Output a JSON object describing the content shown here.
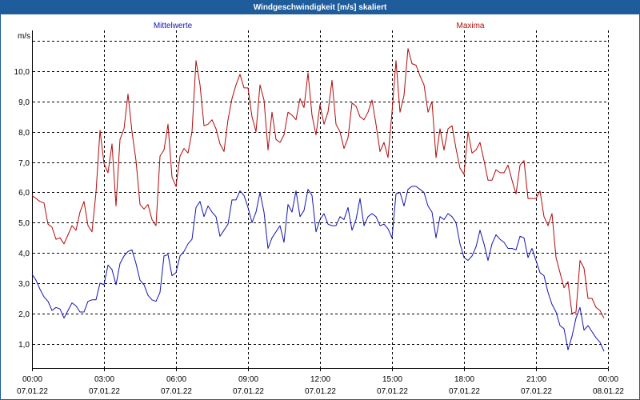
{
  "colors": {
    "title_bar": "#1e5c9b",
    "title_text": "#ffffff",
    "grid": "#000000",
    "axis": "#000000"
  },
  "chart_data": {
    "type": "line",
    "title": "Windgeschwindigkeit [m/s] skaliert",
    "xlabel": "",
    "ylabel": "m/s",
    "ylim": [
      0.2,
      11.35
    ],
    "xlim": [
      "07.01.22 00:00",
      "08.01.22 00:00"
    ],
    "grid": true,
    "legend": "top",
    "y_ticks": [
      {
        "value": 1,
        "label": "1,0"
      },
      {
        "value": 2,
        "label": "2,0"
      },
      {
        "value": 3,
        "label": "3,0"
      },
      {
        "value": 4,
        "label": "4,0"
      },
      {
        "value": 5,
        "label": "5,0"
      },
      {
        "value": 6,
        "label": "6,0"
      },
      {
        "value": 7,
        "label": "7,0"
      },
      {
        "value": 8,
        "label": "8,0"
      },
      {
        "value": 9,
        "label": "9,0"
      },
      {
        "value": 10,
        "label": "10,0"
      }
    ],
    "x_ticks": [
      {
        "time": "00:00",
        "date": "07.01.22"
      },
      {
        "time": "03:00",
        "date": "07.01.22"
      },
      {
        "time": "06:00",
        "date": "07.01.22"
      },
      {
        "time": "09:00",
        "date": "07.01.22"
      },
      {
        "time": "12:00",
        "date": "07.01.22"
      },
      {
        "time": "15:00",
        "date": "07.01.22"
      },
      {
        "time": "18:00",
        "date": "07.01.22"
      },
      {
        "time": "21:00",
        "date": "07.01.22"
      },
      {
        "time": "00:00",
        "date": "08.01.22"
      }
    ],
    "x": [
      "07.01.22 00:00",
      "07.01.22 00:10",
      "07.01.22 00:20",
      "07.01.22 00:30",
      "07.01.22 00:40",
      "07.01.22 00:50",
      "07.01.22 01:00",
      "07.01.22 01:10",
      "07.01.22 01:20",
      "07.01.22 01:30",
      "07.01.22 01:40",
      "07.01.22 01:50",
      "07.01.22 02:00",
      "07.01.22 02:10",
      "07.01.22 02:20",
      "07.01.22 02:30",
      "07.01.22 02:40",
      "07.01.22 02:50",
      "07.01.22 03:00",
      "07.01.22 03:10",
      "07.01.22 03:20",
      "07.01.22 03:30",
      "07.01.22 03:40",
      "07.01.22 03:50",
      "07.01.22 04:00",
      "07.01.22 04:10",
      "07.01.22 04:20",
      "07.01.22 04:30",
      "07.01.22 04:40",
      "07.01.22 04:50",
      "07.01.22 05:00",
      "07.01.22 05:10",
      "07.01.22 05:20",
      "07.01.22 05:30",
      "07.01.22 05:40",
      "07.01.22 05:50",
      "07.01.22 06:00",
      "07.01.22 06:10",
      "07.01.22 06:20",
      "07.01.22 06:30",
      "07.01.22 06:40",
      "07.01.22 06:50",
      "07.01.22 07:00",
      "07.01.22 07:10",
      "07.01.22 07:20",
      "07.01.22 07:30",
      "07.01.22 07:40",
      "07.01.22 07:50",
      "07.01.22 08:00",
      "07.01.22 08:10",
      "07.01.22 08:20",
      "07.01.22 08:30",
      "07.01.22 08:40",
      "07.01.22 08:50",
      "07.01.22 09:00",
      "07.01.22 09:10",
      "07.01.22 09:20",
      "07.01.22 09:30",
      "07.01.22 09:40",
      "07.01.22 09:50",
      "07.01.22 10:00",
      "07.01.22 10:10",
      "07.01.22 10:20",
      "07.01.22 10:30",
      "07.01.22 10:40",
      "07.01.22 10:50",
      "07.01.22 11:00",
      "07.01.22 11:10",
      "07.01.22 11:20",
      "07.01.22 11:30",
      "07.01.22 11:40",
      "07.01.22 11:50",
      "07.01.22 12:00",
      "07.01.22 12:10",
      "07.01.22 12:20",
      "07.01.22 12:30",
      "07.01.22 12:40",
      "07.01.22 12:50",
      "07.01.22 13:00",
      "07.01.22 13:10",
      "07.01.22 13:20",
      "07.01.22 13:30",
      "07.01.22 13:40",
      "07.01.22 13:50",
      "07.01.22 14:00",
      "07.01.22 14:10",
      "07.01.22 14:20",
      "07.01.22 14:30",
      "07.01.22 14:40",
      "07.01.22 14:50",
      "07.01.22 15:00",
      "07.01.22 15:10",
      "07.01.22 15:20",
      "07.01.22 15:30",
      "07.01.22 15:40",
      "07.01.22 15:50",
      "07.01.22 16:00",
      "07.01.22 16:10",
      "07.01.22 16:20",
      "07.01.22 16:30",
      "07.01.22 16:40",
      "07.01.22 16:50",
      "07.01.22 17:00",
      "07.01.22 17:10",
      "07.01.22 17:20",
      "07.01.22 17:30",
      "07.01.22 17:40",
      "07.01.22 17:50",
      "07.01.22 18:00",
      "07.01.22 18:10",
      "07.01.22 18:20",
      "07.01.22 18:30",
      "07.01.22 18:40",
      "07.01.22 18:50",
      "07.01.22 19:00",
      "07.01.22 19:10",
      "07.01.22 19:20",
      "07.01.22 19:30",
      "07.01.22 19:40",
      "07.01.22 19:50",
      "07.01.22 20:00",
      "07.01.22 20:10",
      "07.01.22 20:20",
      "07.01.22 20:30",
      "07.01.22 20:40",
      "07.01.22 20:50",
      "07.01.22 21:00",
      "07.01.22 21:10",
      "07.01.22 21:20",
      "07.01.22 21:30",
      "07.01.22 21:40",
      "07.01.22 21:50",
      "07.01.22 22:00",
      "07.01.22 22:10",
      "07.01.22 22:20",
      "07.01.22 22:30",
      "07.01.22 22:40",
      "07.01.22 22:50",
      "07.01.22 23:00",
      "07.01.22 23:10",
      "07.01.22 23:20",
      "07.01.22 23:30",
      "07.01.22 23:40",
      "07.01.22 23:50"
    ],
    "series": [
      {
        "name": "Mittelwerte",
        "color": "#1414b4",
        "values": [
          3.3,
          3.1,
          2.8,
          2.55,
          2.4,
          2.1,
          2.2,
          2.15,
          1.85,
          2.1,
          2.35,
          2.25,
          2.05,
          2.05,
          2.4,
          2.45,
          2.45,
          3.0,
          2.95,
          3.6,
          3.45,
          2.95,
          3.65,
          3.9,
          4.05,
          4.1,
          3.65,
          3.1,
          2.95,
          2.6,
          2.45,
          2.4,
          2.7,
          3.9,
          3.95,
          3.25,
          3.35,
          3.9,
          4.05,
          4.3,
          4.45,
          5.5,
          5.7,
          5.2,
          5.55,
          5.35,
          5.2,
          4.55,
          4.75,
          4.95,
          5.75,
          5.75,
          6.05,
          5.9,
          5.5,
          5.0,
          5.35,
          6.0,
          5.35,
          4.15,
          4.5,
          4.7,
          4.9,
          4.35,
          5.6,
          5.35,
          6.05,
          5.2,
          5.4,
          6.1,
          5.9,
          4.7,
          5.1,
          5.3,
          4.95,
          4.9,
          4.9,
          5.2,
          5.1,
          5.5,
          4.75,
          5.1,
          5.8,
          4.9,
          5.2,
          5.3,
          5.2,
          4.9,
          4.95,
          4.8,
          4.5,
          5.95,
          6.0,
          5.55,
          6.1,
          6.2,
          6.2,
          6.1,
          6.0,
          5.55,
          5.35,
          4.5,
          5.2,
          5.1,
          5.3,
          5.2,
          5.0,
          4.3,
          3.85,
          3.75,
          3.9,
          4.2,
          4.75,
          4.3,
          3.75,
          4.3,
          4.6,
          4.45,
          4.35,
          4.15,
          4.15,
          4.1,
          4.55,
          4.5,
          3.85,
          4.15,
          3.75,
          3.35,
          3.25,
          2.7,
          2.3,
          2.05,
          1.6,
          1.5,
          0.8,
          1.25,
          1.85,
          2.2,
          1.45,
          1.6,
          1.4,
          1.2,
          1.05,
          0.75
        ]
      },
      {
        "name": "Maxima",
        "color": "#b40a0a",
        "values": [
          5.9,
          5.8,
          5.7,
          5.65,
          4.95,
          4.85,
          4.45,
          4.5,
          4.3,
          4.6,
          4.9,
          4.75,
          5.35,
          5.7,
          4.9,
          4.7,
          6.0,
          8.05,
          6.95,
          6.65,
          7.6,
          5.55,
          7.75,
          8.1,
          9.25,
          8.0,
          7.05,
          5.6,
          5.45,
          5.6,
          5.1,
          4.9,
          7.2,
          7.4,
          8.25,
          6.5,
          6.2,
          7.2,
          7.45,
          7.3,
          8.0,
          10.35,
          9.55,
          8.2,
          8.25,
          8.4,
          8.1,
          7.6,
          7.35,
          8.4,
          9.1,
          9.55,
          9.9,
          9.45,
          9.45,
          8.5,
          8.0,
          9.55,
          9.05,
          7.4,
          8.65,
          7.75,
          7.65,
          7.9,
          8.65,
          8.55,
          8.4,
          9.1,
          8.8,
          9.95,
          8.55,
          7.9,
          8.9,
          8.25,
          8.65,
          9.7,
          8.25,
          8.0,
          7.45,
          7.8,
          8.95,
          8.85,
          8.5,
          8.4,
          8.65,
          9.05,
          8.25,
          7.35,
          7.65,
          7.15,
          8.65,
          10.35,
          8.65,
          9.2,
          10.75,
          10.25,
          10.2,
          9.85,
          9.55,
          8.65,
          9.0,
          7.15,
          8.1,
          7.4,
          8.1,
          8.2,
          7.45,
          6.8,
          6.6,
          8.0,
          7.3,
          7.4,
          7.65,
          7.05,
          6.4,
          6.4,
          6.75,
          6.65,
          6.65,
          6.9,
          6.4,
          5.95,
          6.9,
          7.05,
          5.8,
          5.8,
          5.8,
          6.05,
          5.2,
          4.9,
          5.3,
          3.85,
          3.35,
          2.85,
          3.05,
          2.0,
          2.05,
          3.75,
          3.5,
          2.5,
          2.5,
          2.2,
          2.1,
          1.85
        ]
      }
    ]
  }
}
